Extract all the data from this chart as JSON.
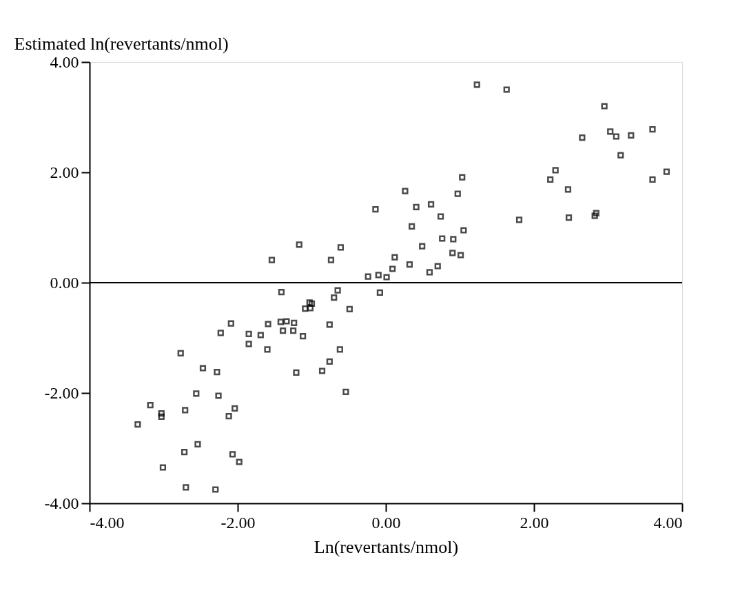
{
  "chart_data": {
    "type": "scatter",
    "xlabel": "Ln(revertants/nmol)",
    "ylabel": "Estimated  ln(revertants/nmol)",
    "xlim": [
      -4,
      4
    ],
    "ylim": [
      -4,
      4
    ],
    "xticks": [
      {
        "value": -4,
        "label": "-4.00"
      },
      {
        "value": -2,
        "label": "-2.00"
      },
      {
        "value": 0,
        "label": "0.00"
      },
      {
        "value": 2,
        "label": "2.00"
      },
      {
        "value": 4,
        "label": "4.00"
      }
    ],
    "yticks": [
      {
        "value": -4,
        "label": "-4.00"
      },
      {
        "value": -2,
        "label": "-2.00"
      },
      {
        "value": 0,
        "label": "0.00"
      },
      {
        "value": 2,
        "label": "2.00"
      },
      {
        "value": 4,
        "label": "4.00"
      }
    ],
    "grid": false,
    "marker": "square",
    "ref_lines": [
      {
        "axis": "y",
        "value": 0,
        "color": "#000000",
        "line_style": "solid"
      }
    ],
    "series": [
      {
        "color": "#000000",
        "x": [
          1.23,
          1.63,
          2.95,
          3.03,
          3.11,
          3.31,
          3.6,
          2.65,
          3.17,
          3.79,
          3.6,
          2.29,
          2.22,
          2.46,
          2.84,
          2.82,
          2.47,
          1.8,
          1.03,
          0.26,
          0.97,
          -0.14,
          0.41,
          0.61,
          0.74,
          0.35,
          1.05,
          0.76,
          0.91,
          0.49,
          0.9,
          1.01,
          0.12,
          0.32,
          0.7,
          0.59,
          0.09,
          -0.1,
          0.01,
          -1.17,
          -0.61,
          -1.54,
          -0.74,
          -0.24,
          -1.41,
          -0.65,
          -0.7,
          -0.08,
          -1.03,
          -1.0,
          -1.09,
          -1.02,
          -0.49,
          -2.09,
          -1.59,
          -1.42,
          -1.34,
          -1.24,
          -0.76,
          -2.23,
          -1.85,
          -1.69,
          -1.39,
          -1.25,
          -1.12,
          -1.85,
          -1.6,
          -0.62,
          -2.77,
          -0.76,
          -2.47,
          -2.28,
          -1.21,
          -0.86,
          -0.54,
          -2.56,
          -2.26,
          -3.18,
          -2.71,
          -3.03,
          -3.03,
          -2.04,
          -2.12,
          -3.35,
          -2.54,
          -2.72,
          -2.07,
          -1.98,
          -3.01,
          -2.7,
          -2.3
        ],
        "values": [
          3.59,
          3.5,
          3.2,
          2.74,
          2.65,
          2.67,
          2.78,
          2.63,
          2.31,
          2.01,
          1.87,
          2.04,
          1.87,
          1.69,
          1.26,
          1.21,
          1.18,
          1.14,
          1.91,
          1.66,
          1.61,
          1.33,
          1.37,
          1.42,
          1.2,
          1.02,
          0.95,
          0.8,
          0.79,
          0.66,
          0.54,
          0.5,
          0.46,
          0.33,
          0.3,
          0.19,
          0.25,
          0.14,
          0.1,
          0.69,
          0.64,
          0.41,
          0.41,
          0.11,
          -0.17,
          -0.14,
          -0.27,
          -0.18,
          -0.36,
          -0.38,
          -0.47,
          -0.46,
          -0.48,
          -0.74,
          -0.75,
          -0.71,
          -0.7,
          -0.73,
          -0.76,
          -0.91,
          -0.93,
          -0.95,
          -0.87,
          -0.87,
          -0.97,
          -1.11,
          -1.21,
          -1.21,
          -1.28,
          -1.43,
          -1.55,
          -1.62,
          -1.63,
          -1.6,
          -1.98,
          -2.01,
          -2.05,
          -2.22,
          -2.31,
          -2.37,
          -2.43,
          -2.28,
          -2.42,
          -2.57,
          -2.93,
          -3.07,
          -3.11,
          -3.25,
          -3.35,
          -3.71,
          -3.75
        ]
      }
    ]
  }
}
